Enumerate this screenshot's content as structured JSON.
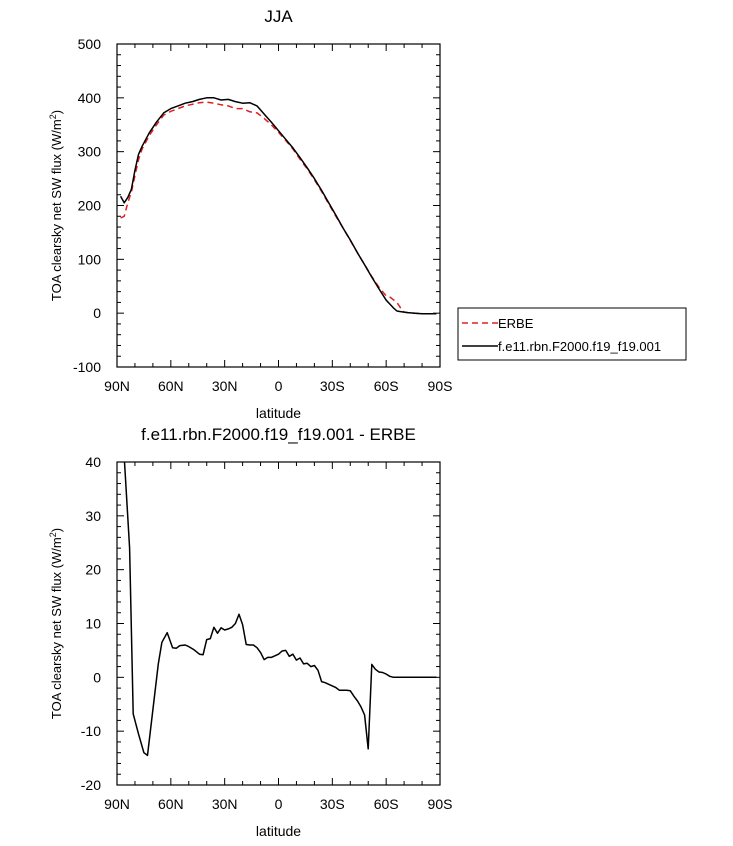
{
  "chart_data": [
    {
      "type": "line",
      "title": "JJA",
      "xlabel": "latitude",
      "ylabel": "TOA clearsky net SW flux (W/m",
      "ylabel_sup": "2",
      "ylabel_close": ")",
      "xlim": [
        90,
        -90
      ],
      "ylim": [
        -100,
        500
      ],
      "x_ticks": [
        90,
        60,
        30,
        0,
        -30,
        -60,
        -90
      ],
      "x_tick_labels": [
        "90N",
        "60N",
        "30N",
        "0",
        "30S",
        "60S",
        "90S"
      ],
      "y_ticks": [
        -100,
        0,
        100,
        200,
        300,
        400,
        500
      ],
      "y_tick_labels": [
        "-100",
        "0",
        "100",
        "200",
        "300",
        "400",
        "500"
      ],
      "legend": {
        "placement": "right",
        "entries": [
          "ERBE",
          "f.e11.rbn.F2000.f19_f19.001"
        ]
      },
      "series": [
        {
          "name": "ERBE",
          "color": "#e02020",
          "dash": "dashed",
          "x": [
            88,
            86,
            84,
            82,
            80,
            78,
            76,
            72,
            68,
            64,
            60,
            56,
            52,
            48,
            44,
            40,
            36,
            32,
            28,
            24,
            20,
            16,
            12,
            8,
            4,
            0,
            -4,
            -8,
            -12,
            -16,
            -20,
            -24,
            -28,
            -32,
            -36,
            -40,
            -44,
            -48,
            -52,
            -56,
            -60,
            -62,
            -64,
            -66,
            -68,
            -70,
            -72,
            -76,
            -80,
            -84,
            -88
          ],
          "y": [
            177,
            180,
            205,
            225,
            255,
            285,
            305,
            330,
            350,
            368,
            375,
            380,
            385,
            388,
            391,
            392,
            390,
            387,
            385,
            380,
            380,
            374,
            372,
            362,
            350,
            336,
            321,
            305,
            286,
            268,
            248,
            226,
            203,
            180,
            158,
            135,
            112,
            90,
            68,
            48,
            32,
            30,
            25,
            20,
            10,
            2,
            1,
            0,
            -1,
            -1,
            -1
          ]
        },
        {
          "name": "f.e11.rbn.F2000.f19_f19.001",
          "color": "#000000",
          "dash": "solid",
          "x": [
            88,
            86,
            84,
            82,
            80,
            78,
            76,
            72,
            68,
            64,
            60,
            56,
            52,
            48,
            44,
            40,
            36,
            32,
            28,
            24,
            20,
            16,
            12,
            8,
            4,
            0,
            -4,
            -8,
            -12,
            -16,
            -20,
            -24,
            -28,
            -32,
            -36,
            -40,
            -44,
            -48,
            -52,
            -56,
            -60,
            -62,
            -64,
            -66,
            -68,
            -70,
            -72,
            -76,
            -80,
            -84,
            -88
          ],
          "y": [
            217,
            205,
            215,
            230,
            265,
            295,
            310,
            335,
            355,
            372,
            380,
            385,
            390,
            393,
            397,
            400,
            400,
            396,
            397,
            393,
            390,
            391,
            385,
            370,
            355,
            339,
            323,
            307,
            289,
            270,
            250,
            228,
            205,
            182,
            158,
            136,
            112,
            90,
            67,
            45,
            24,
            17,
            10,
            4,
            3,
            2,
            1,
            0,
            -1,
            -1,
            -1
          ]
        }
      ]
    },
    {
      "type": "line",
      "title": "f.e11.rbn.F2000.f19_f19.001 - ERBE",
      "xlabel": "latitude",
      "ylabel": "TOA clearsky net SW flux (W/m",
      "ylabel_sup": "2",
      "ylabel_close": ")",
      "xlim": [
        90,
        -90
      ],
      "ylim": [
        -20,
        40
      ],
      "x_ticks": [
        90,
        60,
        30,
        0,
        -30,
        -60,
        -90
      ],
      "x_tick_labels": [
        "90N",
        "60N",
        "30N",
        "0",
        "30S",
        "60S",
        "90S"
      ],
      "y_ticks": [
        -20,
        -10,
        0,
        10,
        20,
        30,
        40
      ],
      "y_tick_labels": [
        "-20",
        "-10",
        "0",
        "10",
        "20",
        "30",
        "40"
      ],
      "series": [
        {
          "color": "#000000",
          "dash": "solid",
          "x": [
            86,
            83,
            81,
            78,
            75,
            73,
            70,
            67,
            65,
            62,
            59,
            57,
            55,
            52,
            50,
            47,
            44,
            42,
            40,
            38,
            36,
            34,
            32,
            30,
            28,
            26,
            24,
            22,
            20,
            18,
            16,
            14,
            12,
            10,
            8,
            6,
            4,
            2,
            0,
            -2,
            -4,
            -6,
            -8,
            -10,
            -12,
            -14,
            -16,
            -18,
            -20,
            -22,
            -24,
            -26,
            -28,
            -30,
            -32,
            -34,
            -36,
            -38,
            -40,
            -42,
            -44,
            -46,
            -48,
            -50,
            -52,
            -54,
            -56,
            -58,
            -60,
            -62,
            -64,
            -66,
            -68,
            -70,
            -72,
            -74,
            -76,
            -78,
            -80,
            -82,
            -84,
            -86,
            -88
          ],
          "y": [
            41,
            24,
            -6.8,
            -10.5,
            -14,
            -14.5,
            -6,
            2.5,
            6.5,
            8.3,
            5.5,
            5.4,
            5.9,
            6.0,
            5.7,
            5.1,
            4.3,
            4.2,
            7.0,
            7.2,
            9.3,
            8.2,
            9.2,
            8.8,
            9.0,
            9.3,
            10.0,
            11.7,
            9.8,
            6.1,
            6.0,
            6.0,
            5.5,
            4.6,
            3.3,
            3.7,
            3.7,
            4.0,
            4.3,
            4.9,
            5.0,
            3.9,
            4.3,
            3.2,
            3.6,
            2.5,
            2.6,
            2.0,
            2.2,
            1.3,
            -0.8,
            -1.0,
            -1.3,
            -1.6,
            -1.9,
            -2.4,
            -2.4,
            -2.4,
            -2.5,
            -3.5,
            -4.4,
            -5.5,
            -7.0,
            -13.3,
            2.4,
            1.5,
            1.0,
            0.9,
            0.6,
            0.2,
            0.0,
            0.0,
            0.0,
            0.0,
            0.0,
            0.0,
            0.0,
            0.0,
            0.0,
            0.0,
            0.0,
            0.0,
            0.0
          ]
        }
      ]
    }
  ]
}
